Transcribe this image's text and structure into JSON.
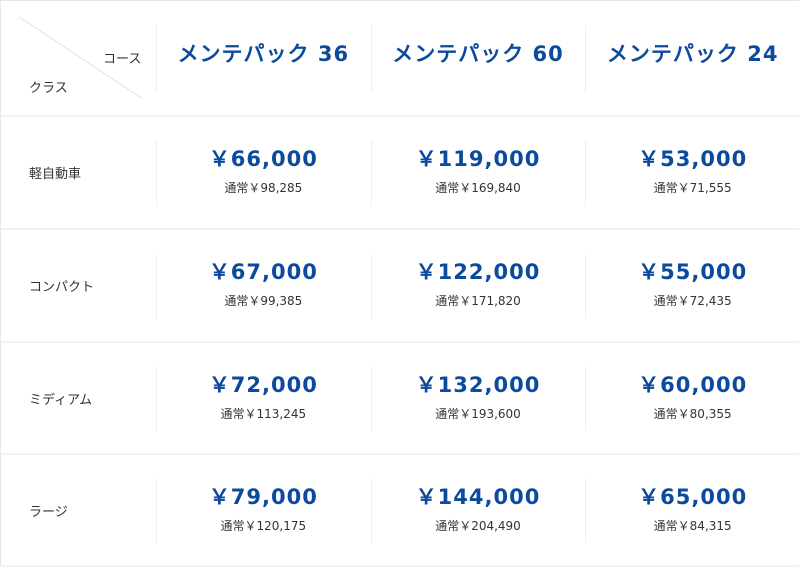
{
  "header": {
    "course_label": "コース",
    "class_label": "クラス",
    "courses": [
      "メンテパック 36",
      "メンテパック 60",
      "メンテパック 24"
    ]
  },
  "rows": [
    {
      "class": "軽自動車",
      "prices": [
        {
          "price": "￥66,000",
          "regular": "通常￥98,285"
        },
        {
          "price": "￥119,000",
          "regular": "通常￥169,840"
        },
        {
          "price": "￥53,000",
          "regular": "通常￥71,555"
        }
      ]
    },
    {
      "class": "コンパクト",
      "prices": [
        {
          "price": "￥67,000",
          "regular": "通常￥99,385"
        },
        {
          "price": "￥122,000",
          "regular": "通常￥171,820"
        },
        {
          "price": "￥55,000",
          "regular": "通常￥72,435"
        }
      ]
    },
    {
      "class": "ミディアム",
      "prices": [
        {
          "price": "￥72,000",
          "regular": "通常￥113,245"
        },
        {
          "price": "￥132,000",
          "regular": "通常￥193,600"
        },
        {
          "price": "￥60,000",
          "regular": "通常￥80,355"
        }
      ]
    },
    {
      "class": "ラージ",
      "prices": [
        {
          "price": "￥79,000",
          "regular": "通常￥120,175"
        },
        {
          "price": "￥144,000",
          "regular": "通常￥204,490"
        },
        {
          "price": "￥65,000",
          "regular": "通常￥84,315"
        }
      ]
    }
  ],
  "colors": {
    "accent": "#0b4a9c"
  }
}
